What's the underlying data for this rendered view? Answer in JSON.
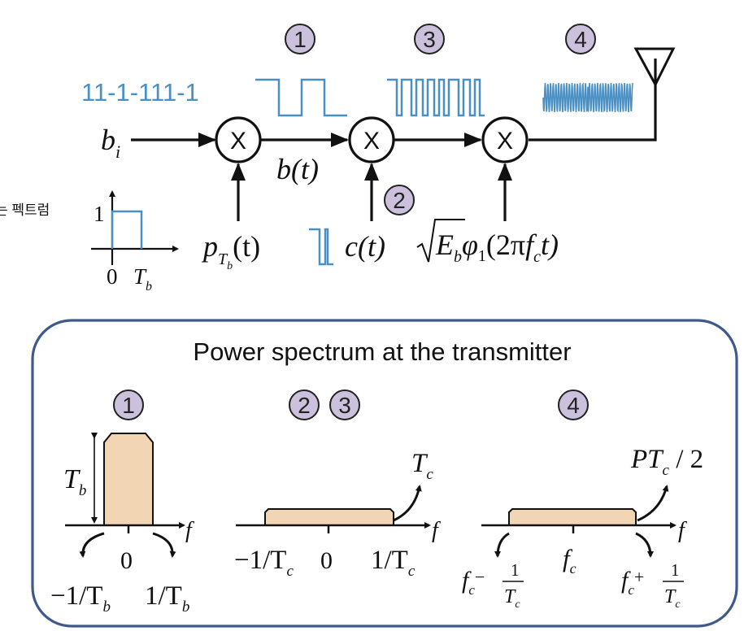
{
  "bit_sequence": "11-1-111-1",
  "inputs": {
    "bits": "b",
    "bits_sub": "i",
    "baseband": "b(t)",
    "pulse_p": "p",
    "pulse_sub": "T",
    "pulse_subsub": "b",
    "pulse_arg": "(t)",
    "code": "c(t)",
    "carrier_sqrt_E": "E",
    "carrier_sqrt_sub": "b",
    "carrier_phi": "φ",
    "carrier_phi_sub": "1",
    "carrier_arg_open": "(2π",
    "carrier_f": "f",
    "carrier_f_sub": "c",
    "carrier_arg_close": "t)"
  },
  "pulse_plot": {
    "y_label": "1",
    "x_zero": "0",
    "x_label": "T",
    "x_label_sub": "b"
  },
  "badges": [
    "1",
    "2",
    "3",
    "4"
  ],
  "left_edge_text": "는 펙트럼",
  "panel": {
    "title": "Power spectrum at the transmitter",
    "s1": {
      "badge": "1",
      "peak": "T",
      "peak_sub": "b",
      "zero": "0",
      "left": "−1/T",
      "left_sub": "b",
      "right": "1/T",
      "right_sub": "b",
      "axis": "f"
    },
    "s23": {
      "badge_a": "2",
      "badge_b": "3",
      "peak": "T",
      "peak_sub": "c",
      "zero": "0",
      "left": "−1/T",
      "left_sub": "c",
      "right": "1/T",
      "right_sub": "c",
      "axis": "f"
    },
    "s4": {
      "badge": "4",
      "peak": "PT",
      "peak_sub": "c",
      "peak_tail": " / 2",
      "center": "f",
      "center_sub": "c",
      "left_f": "f",
      "left_f_sub": "c",
      "left_op": "−",
      "right_f": "f",
      "right_f_sub": "c",
      "right_op": "+",
      "frac_num": "1",
      "frac_den": "T",
      "frac_den_sub": "c",
      "axis": "f"
    }
  },
  "colors": {
    "badge_fill": "#ccc1dc",
    "signal": "#4a90c4",
    "panel_border": "#3f5a8a",
    "spectrum_fill": "#f2d6b4"
  }
}
